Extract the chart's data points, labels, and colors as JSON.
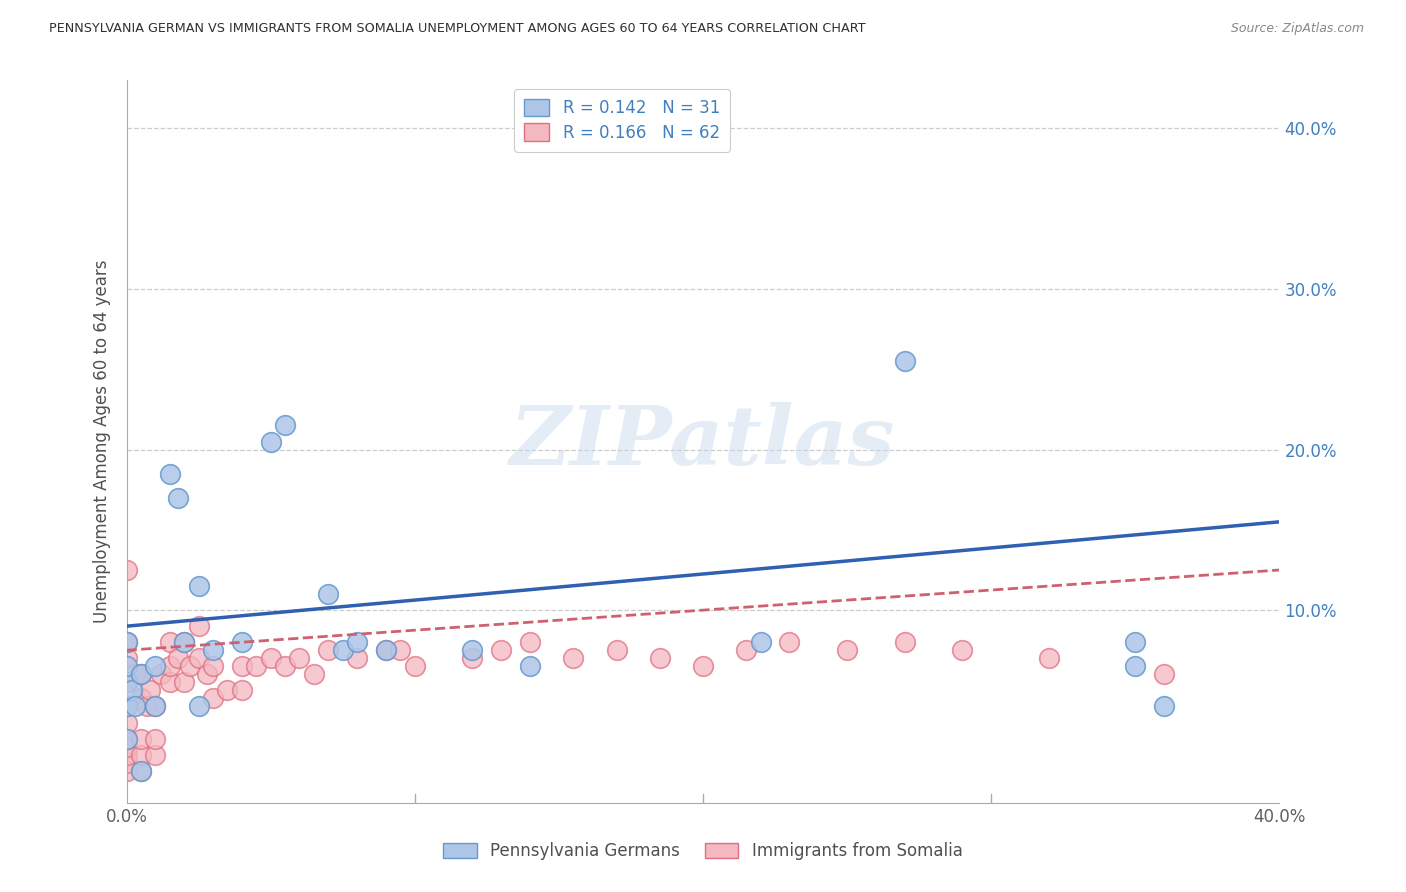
{
  "title": "PENNSYLVANIA GERMAN VS IMMIGRANTS FROM SOMALIA UNEMPLOYMENT AMONG AGES 60 TO 64 YEARS CORRELATION CHART",
  "source": "Source: ZipAtlas.com",
  "ylabel": "Unemployment Among Ages 60 to 64 years",
  "xlim": [
    0.0,
    0.4
  ],
  "ylim": [
    -0.02,
    0.43
  ],
  "watermark": "ZIPatlas",
  "pg_color": "#aec6e8",
  "pg_edge_color": "#6699cc",
  "somalia_color": "#f4b8c1",
  "somalia_edge_color": "#e07080",
  "pg_line_color": "#3060b0",
  "somalia_line_color": "#d06070",
  "grid_color": "#cccccc",
  "background_color": "#ffffff",
  "title_color": "#303030",
  "source_color": "#888888",
  "right_tick_color": "#4080c0",
  "pg_line_y0": 0.09,
  "pg_line_y1": 0.155,
  "som_line_y0": 0.075,
  "som_line_y1": 0.125,
  "pg_scatter_x": [
    0.0,
    0.0,
    0.0,
    0.0,
    0.0,
    0.002,
    0.003,
    0.005,
    0.005,
    0.01,
    0.01,
    0.015,
    0.018,
    0.02,
    0.025,
    0.025,
    0.03,
    0.04,
    0.05,
    0.055,
    0.07,
    0.075,
    0.08,
    0.09,
    0.12,
    0.14,
    0.22,
    0.27,
    0.35,
    0.35,
    0.36
  ],
  "pg_scatter_y": [
    0.02,
    0.04,
    0.055,
    0.065,
    0.08,
    0.05,
    0.04,
    0.0,
    0.06,
    0.04,
    0.065,
    0.185,
    0.17,
    0.08,
    0.04,
    0.115,
    0.075,
    0.08,
    0.205,
    0.215,
    0.11,
    0.075,
    0.08,
    0.075,
    0.075,
    0.065,
    0.08,
    0.255,
    0.08,
    0.065,
    0.04
  ],
  "som_scatter_x": [
    0.0,
    0.0,
    0.0,
    0.0,
    0.0,
    0.0,
    0.0,
    0.0,
    0.0,
    0.0,
    0.0,
    0.003,
    0.005,
    0.005,
    0.005,
    0.005,
    0.005,
    0.007,
    0.008,
    0.01,
    0.01,
    0.01,
    0.012,
    0.015,
    0.015,
    0.015,
    0.018,
    0.02,
    0.02,
    0.022,
    0.025,
    0.025,
    0.028,
    0.03,
    0.03,
    0.035,
    0.04,
    0.04,
    0.045,
    0.05,
    0.055,
    0.06,
    0.065,
    0.07,
    0.08,
    0.09,
    0.095,
    0.1,
    0.12,
    0.13,
    0.14,
    0.155,
    0.17,
    0.185,
    0.2,
    0.215,
    0.23,
    0.25,
    0.27,
    0.29,
    0.32,
    0.36
  ],
  "som_scatter_y": [
    0.0,
    0.005,
    0.01,
    0.015,
    0.02,
    0.03,
    0.04,
    0.055,
    0.07,
    0.08,
    0.125,
    0.06,
    0.0,
    0.01,
    0.02,
    0.045,
    0.06,
    0.04,
    0.05,
    0.01,
    0.02,
    0.04,
    0.06,
    0.055,
    0.065,
    0.08,
    0.07,
    0.055,
    0.08,
    0.065,
    0.07,
    0.09,
    0.06,
    0.045,
    0.065,
    0.05,
    0.05,
    0.065,
    0.065,
    0.07,
    0.065,
    0.07,
    0.06,
    0.075,
    0.07,
    0.075,
    0.075,
    0.065,
    0.07,
    0.075,
    0.08,
    0.07,
    0.075,
    0.07,
    0.065,
    0.075,
    0.08,
    0.075,
    0.08,
    0.075,
    0.07,
    0.06
  ]
}
